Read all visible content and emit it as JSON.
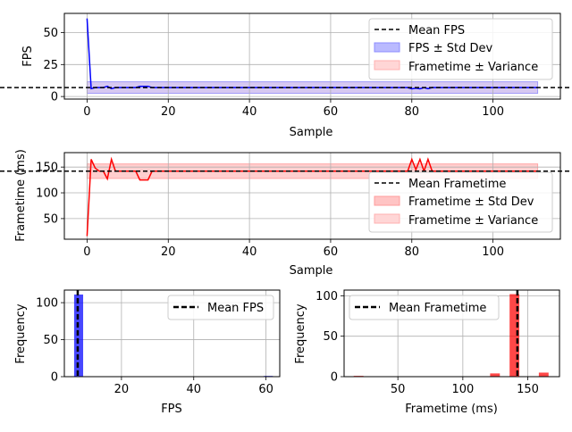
{
  "colors": {
    "fps_line": "#0000ff",
    "frametime_line": "#ff0000",
    "mean_line": "#000000",
    "fps_band": "#8c8cff",
    "frametime_band": "#ff9c9c",
    "variance_band": "#ffd6d6",
    "grid": "#b0b0b0"
  },
  "chart_data": [
    {
      "type": "line",
      "xlabel": "Sample",
      "ylabel": "FPS",
      "xlim": [
        -5.6,
        116.6
      ],
      "ylim": [
        -2,
        65
      ],
      "xticks": [
        0,
        20,
        40,
        60,
        80,
        100
      ],
      "yticks": [
        0,
        25,
        50
      ],
      "grid": true,
      "legend_position": "top-right",
      "legend": [
        "Mean FPS",
        "FPS ± Std Dev",
        "Frametime ± Variance"
      ],
      "mean": 7.0,
      "std_band": [
        2.5,
        11.5
      ],
      "series": [
        {
          "x": [
            0,
            1,
            2,
            3,
            4,
            5,
            6,
            7,
            8,
            9,
            10,
            11,
            12,
            13,
            14,
            15,
            16,
            20,
            30,
            40,
            50,
            60,
            70,
            78,
            79,
            80,
            81,
            82,
            83,
            84,
            85,
            90,
            100,
            111
          ],
          "values": [
            61,
            6.2,
            7,
            7,
            7,
            8,
            6.2,
            7,
            7,
            7,
            7,
            7,
            7,
            8,
            8,
            8,
            7,
            7,
            7,
            7,
            7,
            7,
            7,
            7,
            7,
            6,
            6.5,
            6,
            7,
            6.2,
            7,
            7,
            7,
            7
          ]
        }
      ]
    },
    {
      "type": "line",
      "xlabel": "Sample",
      "ylabel": "Frametime (ms)",
      "xlim": [
        -5.6,
        116.6
      ],
      "ylim": [
        10,
        178
      ],
      "xticks": [
        0,
        20,
        40,
        60,
        80,
        100
      ],
      "yticks": [
        50,
        100,
        150
      ],
      "grid": true,
      "legend_position": "center-right",
      "legend": [
        "Mean Frametime",
        "Frametime ± Std Dev",
        "Frametime ± Variance"
      ],
      "mean": 142,
      "std_band": [
        128,
        156
      ],
      "series": [
        {
          "x": [
            0,
            1,
            2,
            3,
            4,
            5,
            6,
            7,
            8,
            9,
            10,
            11,
            12,
            13,
            14,
            15,
            16,
            20,
            30,
            40,
            50,
            60,
            70,
            78,
            79,
            80,
            81,
            82,
            83,
            84,
            85,
            90,
            100,
            111
          ],
          "values": [
            16,
            165,
            148,
            142,
            142,
            127,
            165,
            142,
            142,
            142,
            142,
            142,
            142,
            125,
            125,
            125,
            142,
            142,
            142,
            142,
            142,
            142,
            142,
            142,
            142,
            165,
            145,
            165,
            142,
            165,
            142,
            142,
            142,
            142
          ]
        }
      ]
    },
    {
      "type": "bar",
      "xlabel": "FPS",
      "ylabel": "Frequency",
      "xlim": [
        4.2,
        63.8
      ],
      "ylim": [
        0,
        117
      ],
      "xticks": [
        20,
        40,
        60
      ],
      "yticks": [
        0,
        50,
        100
      ],
      "grid": true,
      "legend_position": "top-right",
      "legend": [
        "Mean FPS"
      ],
      "mean": 7.9,
      "bins": [
        [
          6.9,
          9.4,
          111
        ],
        [
          59.4,
          61.9,
          1
        ]
      ]
    },
    {
      "type": "bar",
      "xlabel": "Frametime (ms)",
      "ylabel": "Frequency",
      "xlim": [
        8.6,
        174.4
      ],
      "ylim": [
        0,
        107
      ],
      "xticks": [
        50,
        100,
        150
      ],
      "yticks": [
        0,
        50,
        100
      ],
      "grid": true,
      "legend_position": "top-left",
      "legend": [
        "Mean Frametime"
      ],
      "mean": 142,
      "bins": [
        [
          16,
          23.5,
          1
        ],
        [
          121,
          128.5,
          4
        ],
        [
          136,
          143.5,
          102
        ],
        [
          158.5,
          166,
          5
        ]
      ]
    }
  ]
}
